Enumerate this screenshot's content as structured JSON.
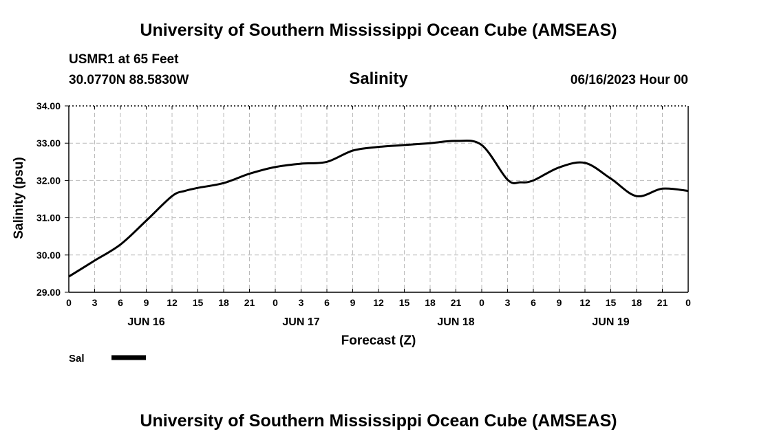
{
  "header": {
    "title": "University of Southern Mississippi Ocean Cube (AMSEAS)",
    "station": "USMR1 at 65 Feet",
    "coordinates": "30.0770N  88.5830W",
    "run_time": "06/16/2023 Hour 00"
  },
  "footer": {
    "title": "University of Southern Mississippi Ocean Cube (AMSEAS)"
  },
  "chart_data": {
    "type": "line",
    "title": "Salinity",
    "xlabel": "Forecast (Z)",
    "ylabel": "Salinity (psu)",
    "xlim": [
      0,
      72
    ],
    "ylim": [
      29.0,
      34.0
    ],
    "grid": true,
    "y_ticks": [
      "29.00",
      "30.00",
      "31.00",
      "32.00",
      "33.00",
      "34.00"
    ],
    "y_tick_values": [
      29,
      30,
      31,
      32,
      33,
      34
    ],
    "x_tick_hours": [
      0,
      3,
      6,
      9,
      12,
      15,
      18,
      21,
      24,
      27,
      30,
      33,
      36,
      39,
      42,
      45,
      48,
      51,
      54,
      57,
      60,
      63,
      66,
      69,
      72
    ],
    "x_tick_labels": [
      "0",
      "3",
      "6",
      "9",
      "12",
      "15",
      "18",
      "21",
      "0",
      "3",
      "6",
      "9",
      "12",
      "15",
      "18",
      "21",
      "0",
      "3",
      "6",
      "9",
      "12",
      "15",
      "18",
      "21",
      "0"
    ],
    "day_labels": [
      {
        "label": "JUN 16",
        "hour": 9
      },
      {
        "label": "JUN 17",
        "hour": 27
      },
      {
        "label": "JUN 18",
        "hour": 45
      },
      {
        "label": "JUN 19",
        "hour": 63
      }
    ],
    "series": [
      {
        "name": "Sal",
        "color": "#000000",
        "x": [
          0,
          3,
          6,
          9,
          12,
          13.5,
          15,
          18,
          21,
          24,
          27,
          30,
          33,
          36,
          39,
          42,
          45,
          48,
          51,
          52.5,
          54,
          57,
          60,
          63,
          66,
          69,
          72
        ],
        "values": [
          29.42,
          29.85,
          30.28,
          30.92,
          31.58,
          31.72,
          31.8,
          31.93,
          32.18,
          32.36,
          32.45,
          32.5,
          32.8,
          32.9,
          32.95,
          33.0,
          33.06,
          32.95,
          32.02,
          31.95,
          32.0,
          32.35,
          32.47,
          32.05,
          31.58,
          31.78,
          31.72
        ]
      }
    ],
    "legend": [
      {
        "label": "Sal",
        "color": "#000000"
      }
    ]
  }
}
